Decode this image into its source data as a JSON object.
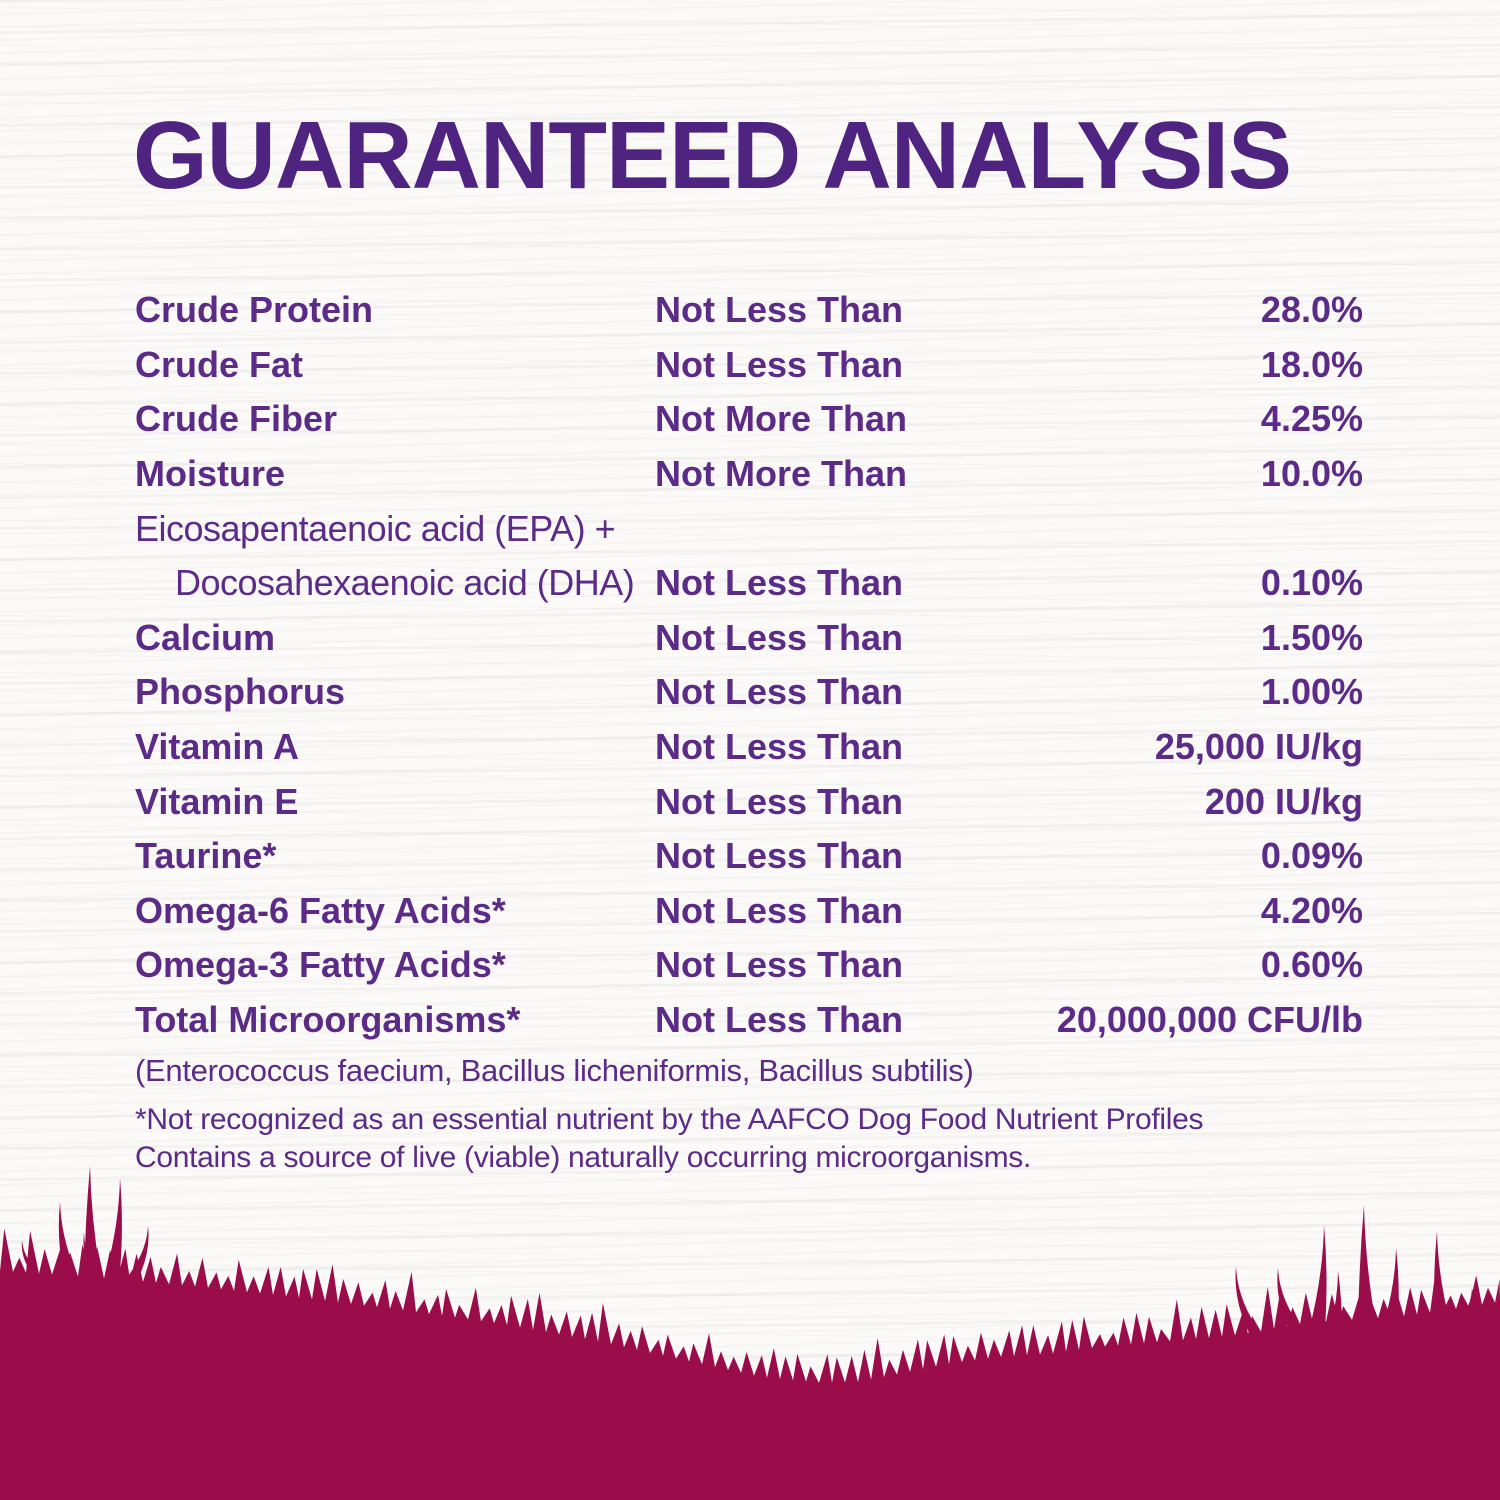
{
  "header": {
    "title": "GUARANTEED ANALYSIS"
  },
  "table": {
    "rows": [
      {
        "name": "Crude Protein",
        "condition": "Not Less Than",
        "value": "28.0%"
      },
      {
        "name": "Crude Fat",
        "condition": "Not Less Than",
        "value": "18.0%"
      },
      {
        "name": "Crude Fiber",
        "condition": "Not More Than",
        "value": "4.25%"
      },
      {
        "name": "Moisture",
        "condition": "Not More Than",
        "value": "10.0%"
      },
      {
        "name": "Eicosapentaenoic acid (EPA) +",
        "name2": "Docosahexaenoic acid (DHA)",
        "condition": "Not Less Than",
        "value": "0.10%",
        "two_line": true
      },
      {
        "name": "Calcium",
        "condition": "Not Less Than",
        "value": "1.50%"
      },
      {
        "name": "Phosphorus",
        "condition": "Not Less Than",
        "value": "1.00%"
      },
      {
        "name": "Vitamin A",
        "condition": "Not Less Than",
        "value": "25,000 IU/kg"
      },
      {
        "name": "Vitamin E",
        "condition": "Not Less Than",
        "value": "200 IU/kg"
      },
      {
        "name": "Taurine*",
        "condition": "Not Less Than",
        "value": "0.09%"
      },
      {
        "name": "Omega-6 Fatty Acids*",
        "condition": "Not Less Than",
        "value": "4.20%"
      },
      {
        "name": "Omega-3 Fatty Acids*",
        "condition": "Not Less Than",
        "value": "0.60%"
      },
      {
        "name": "Total Microorganisms*",
        "condition": "Not Less Than",
        "value": "20,000,000 CFU/lb"
      }
    ]
  },
  "notes": {
    "microorganisms_list": "(Enterococcus faecium, Bacillus licheniformis, Bacillus subtilis)",
    "footnote_line1": "*Not recognized as an essential nutrient by the AAFCO Dog Food Nutrient Profiles",
    "footnote_line2": "Contains a source of live (viable) naturally occurring microorganisms."
  },
  "colors": {
    "title_purple": "#4f2481",
    "body_purple": "#5b2b87",
    "grass_magenta": "#9b0c4b",
    "background": "#fbfaf8"
  }
}
